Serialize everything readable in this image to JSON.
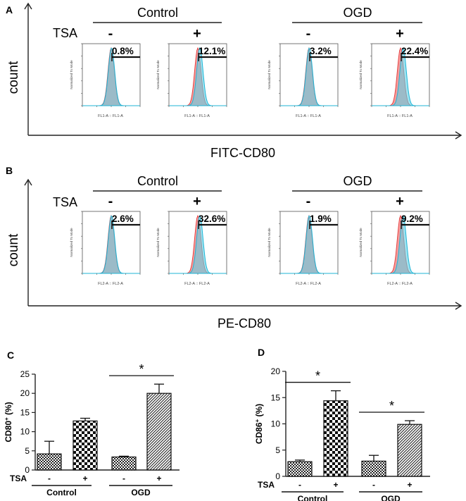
{
  "colors": {
    "red_fill": "#f28a8a",
    "red_line": "#e23b3b",
    "blue_fill": "#5fd0e6",
    "blue_line": "#1fb5d6",
    "overlap": "#7f9bb0",
    "axis": "#222222"
  },
  "panel_A": {
    "label": "A",
    "ylabel": "count",
    "xlabel": "FITC-CD80",
    "treatment_label": "TSA",
    "group_labels": [
      "Control",
      "OGD"
    ],
    "histograms": [
      {
        "tsa": "-",
        "percent": "0.8%",
        "xaxis": "FL1-A :: FL1-A",
        "y_axis_label": "Normalized To Mode"
      },
      {
        "tsa": "+",
        "percent": "12.1%",
        "xaxis": "FL1-A :: FL1-A",
        "y_axis_label": "Normalized To Mode"
      },
      {
        "tsa": "-",
        "percent": "3.2%",
        "xaxis": "FL1-A :: FL1-A",
        "y_axis_label": "Normalized To Mode"
      },
      {
        "tsa": "+",
        "percent": "22.4%",
        "xaxis": "FL1-A :: FL1-A",
        "y_axis_label": "Normalized To Mode"
      }
    ]
  },
  "panel_B": {
    "label": "B",
    "ylabel": "count",
    "xlabel": "PE-CD80",
    "treatment_label": "TSA",
    "group_labels": [
      "Control",
      "OGD"
    ],
    "histograms": [
      {
        "tsa": "-",
        "percent": "2.6%",
        "xaxis": "FL2-A :: FL2-A",
        "y_axis_label": "Normalized To Mode"
      },
      {
        "tsa": "+",
        "percent": "32.6%",
        "xaxis": "FL2-A :: FL2-A",
        "y_axis_label": "Normalized To Mode"
      },
      {
        "tsa": "-",
        "percent": "1.9%",
        "xaxis": "FL2-A :: FL2-A",
        "y_axis_label": "Normalized To Mode"
      },
      {
        "tsa": "+",
        "percent": "9.2%",
        "xaxis": "FL2-A :: FL2-A",
        "y_axis_label": "Normalized To Mode"
      }
    ]
  },
  "chart_data": [
    {
      "panel": "C",
      "type": "bar",
      "ylabel_main": "CD80",
      "ylabel_sup": "+",
      "ylabel_suffix": " (%)",
      "ylim": [
        0,
        25
      ],
      "yticks": [
        0,
        5,
        10,
        15,
        20,
        25
      ],
      "treatment_label": "TSA",
      "categories": [
        "-",
        "+",
        "-",
        "+"
      ],
      "groups": [
        "Control",
        "OGD"
      ],
      "values": [
        4.2,
        12.8,
        3.4,
        20.0
      ],
      "errors": [
        3.3,
        0.7,
        0.2,
        2.4
      ],
      "patterns": [
        "fine-check",
        "check",
        "fine-check",
        "diagonal"
      ],
      "significance": [
        {
          "between": [
            2,
            3
          ],
          "label": "*"
        }
      ]
    },
    {
      "panel": "D",
      "type": "bar",
      "ylabel_main": "CD86",
      "ylabel_sup": "+",
      "ylabel_suffix": " (%)",
      "ylim": [
        0,
        20
      ],
      "yticks": [
        0,
        5,
        10,
        15,
        20
      ],
      "treatment_label": "TSA",
      "categories": [
        "-",
        "+",
        "-",
        "+"
      ],
      "groups": [
        "Control",
        "OGD"
      ],
      "values": [
        2.8,
        14.4,
        2.9,
        9.9
      ],
      "errors": [
        0.3,
        1.9,
        1.1,
        0.7
      ],
      "patterns": [
        "fine-check",
        "check",
        "fine-check",
        "diagonal"
      ],
      "significance": [
        {
          "between": [
            0,
            1
          ],
          "label": "*"
        },
        {
          "between": [
            2,
            3
          ],
          "label": "*"
        }
      ]
    }
  ]
}
